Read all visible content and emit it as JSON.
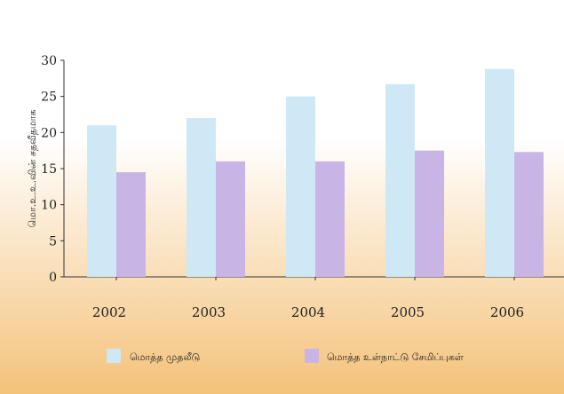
{
  "chart_data": {
    "type": "bar",
    "categories": [
      "2002",
      "2003",
      "2004",
      "2005",
      "2006"
    ],
    "series": [
      {
        "name": "மொத்த முதலீடு",
        "values": [
          21.0,
          22.0,
          25.0,
          26.7,
          28.8
        ],
        "color": "#cfe8f6"
      },
      {
        "name": "மொத்த உள்நாட்டு சேமிப்புகள்",
        "values": [
          14.5,
          16.0,
          16.0,
          17.5,
          17.3
        ],
        "color": "#c8b5e6"
      }
    ],
    "ylabel": "மொ.உ.உ.வின் சதவீதமாக",
    "yticks": [
      "0",
      "5",
      "10",
      "15",
      "20",
      "25",
      "30"
    ],
    "ylim": [
      0,
      30
    ],
    "grid": false,
    "legend_position": "bottom",
    "colors": {
      "background_top": "#ffffff",
      "background_bottom": "#f4c27a",
      "axis": "#333333",
      "text": "#222222"
    }
  }
}
